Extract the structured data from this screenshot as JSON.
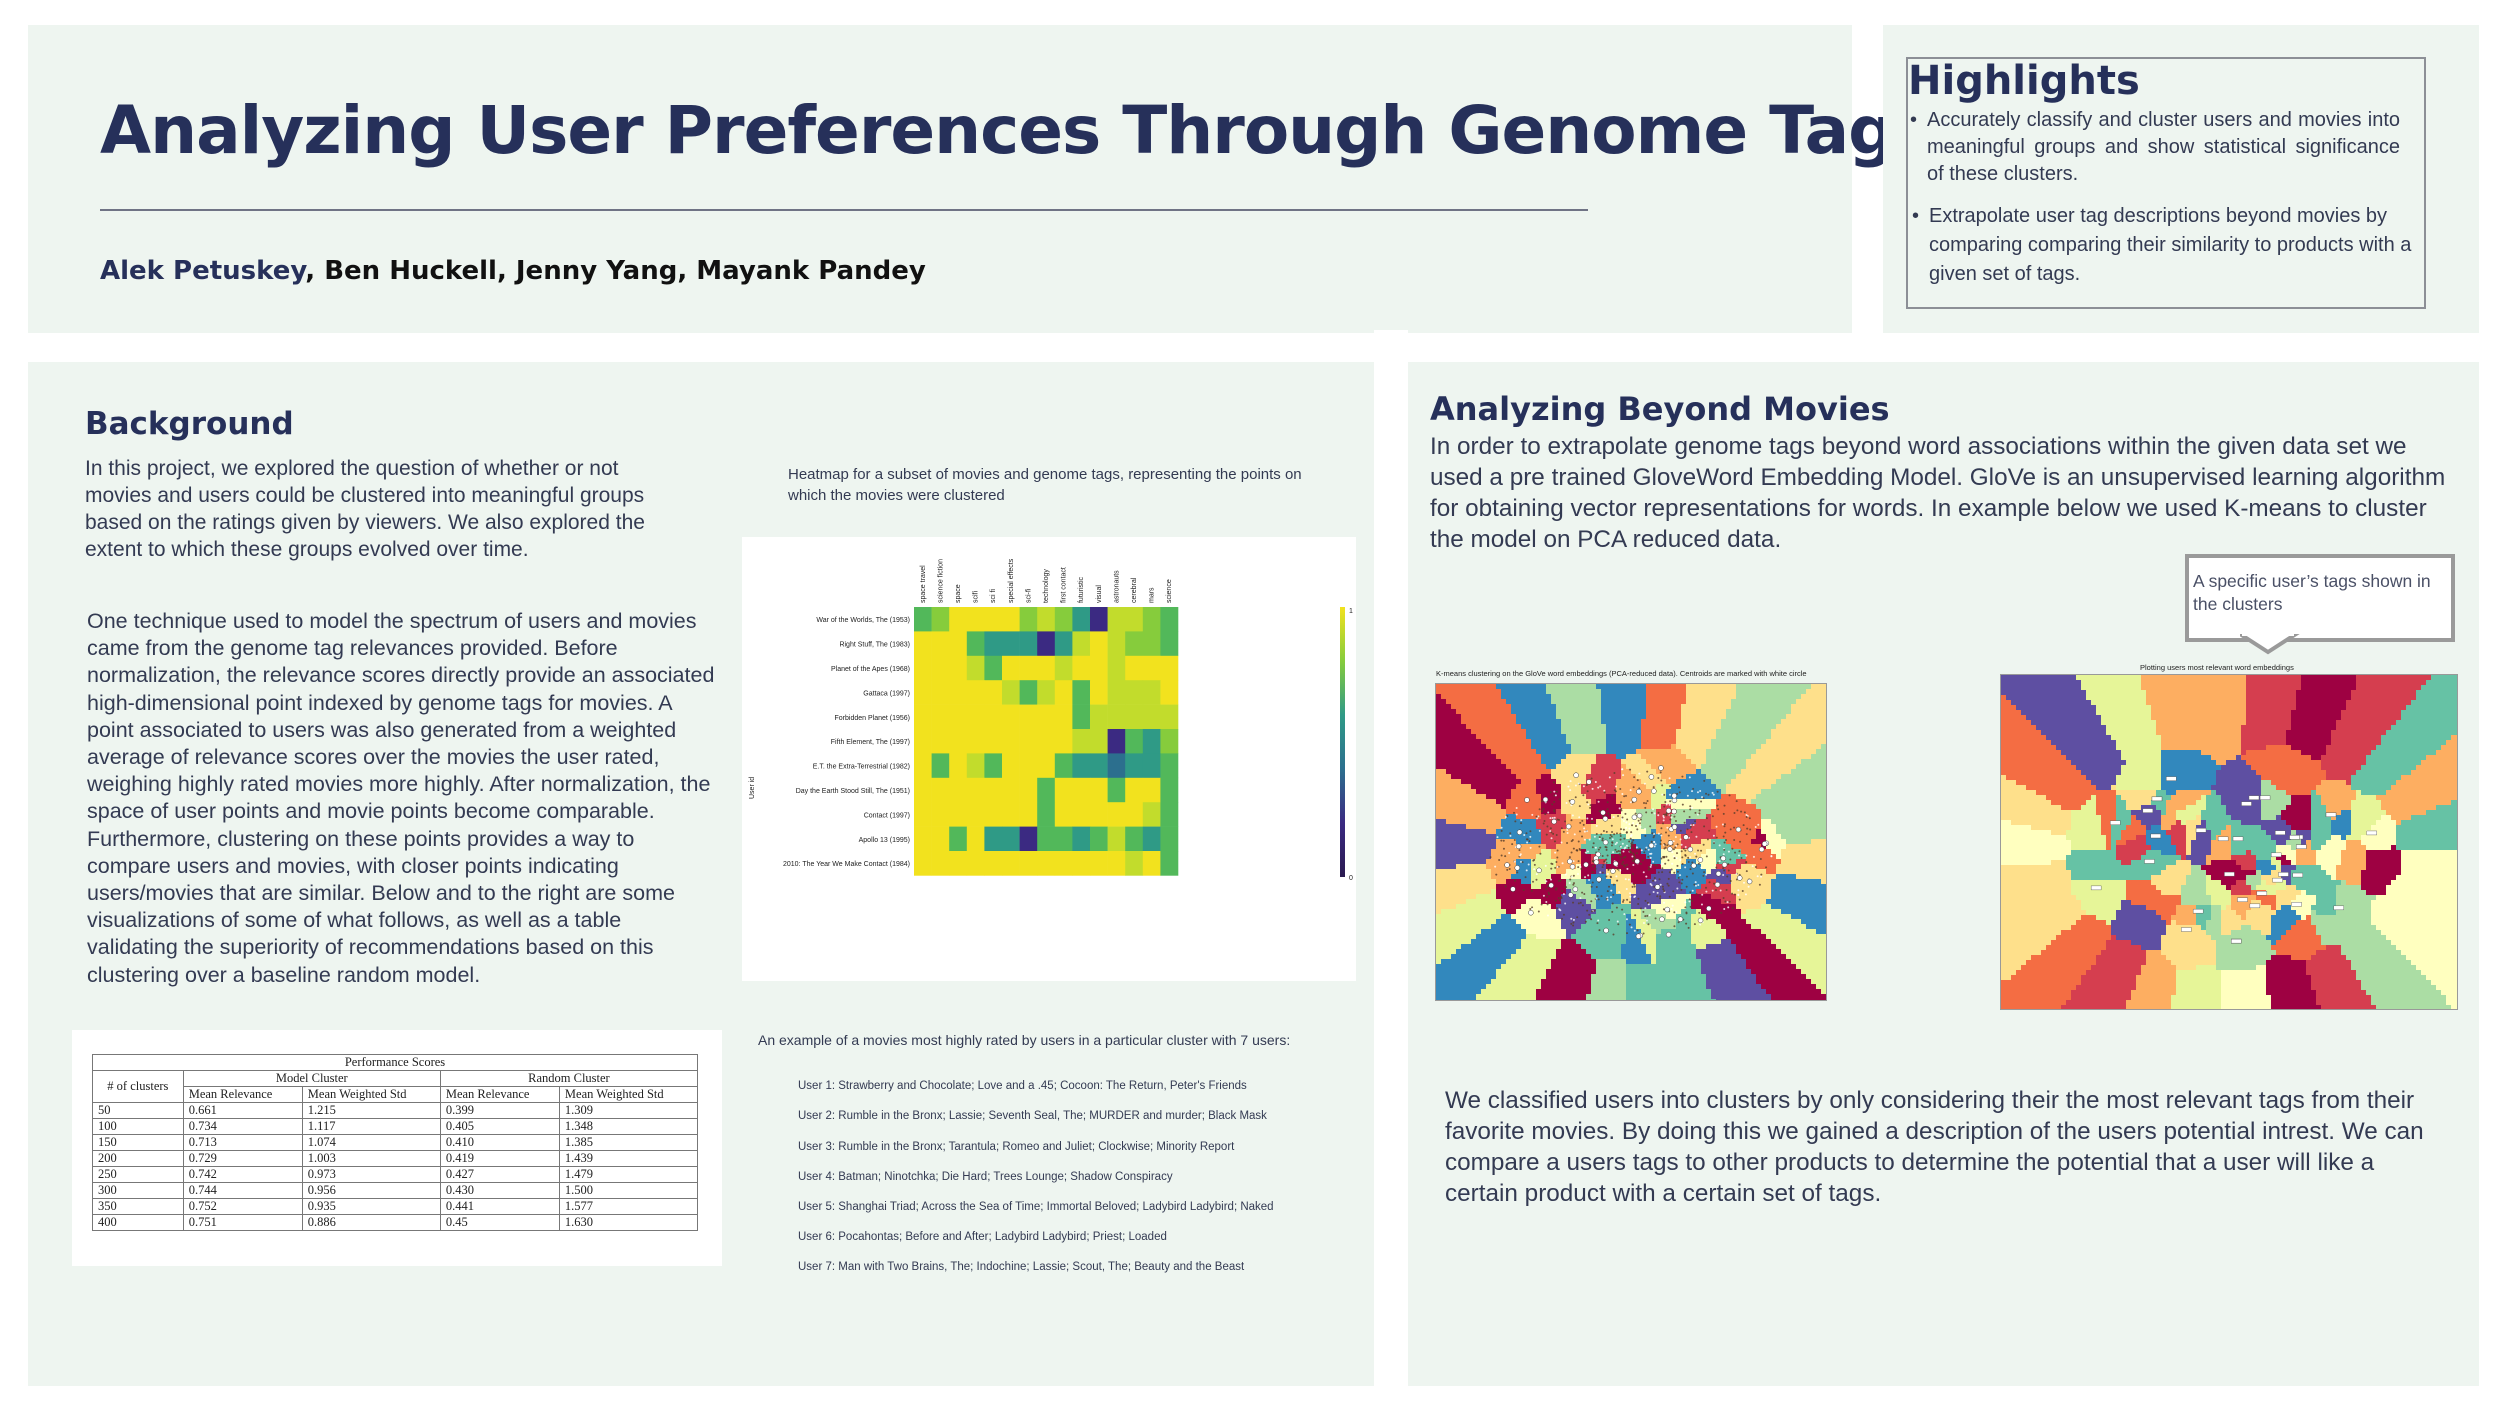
{
  "header": {
    "title": "Analyzing User Preferences Through Genome Tags",
    "author_lead": "Alek Petuskey",
    "authors_rest": ", Ben Huckell, Jenny Yang, Mayank Pandey"
  },
  "highlights": {
    "title": "Highlights",
    "items": [
      "Accurately classify and cluster users and movies into meaningful groups and show statistical significance of these clusters.",
      "Extrapolate user tag descriptions beyond movies by comparing comparing their similarity to products with a given set of tags."
    ]
  },
  "background": {
    "heading": "Background",
    "para1": "In this project, we explored the question of whether or not movies and users could be clustered into meaningful groups based on the ratings given by viewers. We also explored the extent to which these groups evolved over time.",
    "para2": "One technique used to model the spectrum of users and movies came from the genome tag relevances provided. Before normalization, the relevance scores directly provide an associated high-dimensional point indexed by genome tags for movies. A point associated to users was also generated from a weighted average of relevance scores over the movies the user rated, weighing highly rated movies more highly. After normalization, the space of user points and movie points become comparable. Furthermore, clustering on these points provides a way to compare users and movies,  with closer points indicating users/movies that are similar. Below and to the right are some visualizations of some of what follows, as well as a table validating the superiority of recommendations based on this clustering over a baseline random model."
  },
  "heatmap": {
    "caption": "Heatmap for a subset of movies and genome tags, representing the points on which the movies were clustered",
    "tags": [
      "space travel",
      "science fiction",
      "space",
      "scifi",
      "sci fi",
      "special effects",
      "sci-fi",
      "technology",
      "first contact",
      "futuristic",
      "visual",
      "astronauts",
      "cerebral",
      "mars",
      "science"
    ],
    "movies": [
      "War of the Worlds, The (1953)",
      "Right Stuff, The (1983)",
      "Planet of the Apes (1968)",
      "Gattaca (1997)",
      "Forbidden Planet (1956)",
      "Fifth Element, The (1997)",
      "E.T. the Extra-Terrestrial (1982)",
      "Day the Earth Stood Still, The (1951)",
      "Contact (1997)",
      "Apollo 13 (1995)",
      "2010: The Year We Make Contact (1984)"
    ],
    "ylabel": "User id",
    "scale_max": "1",
    "scale_min": "0",
    "colors": {
      "y": "#f2e21e",
      "l": "#c2dc2c",
      "g": "#86cc3c",
      "m": "#52b85a",
      "t": "#2f9a86",
      "d": "#2c6f8e",
      "p": "#3b2a82",
      "k": "#2a1a50"
    },
    "cells": [
      "mgyyyyglgtpllgm",
      "yyymtttptlylggm",
      "yyylmyyylyylyyy",
      "yyyyylmlymyllly",
      "yyyyyyyyymlllll",
      "yyyyyyyyyllpmtg",
      "ymylmyyymttdttm",
      "yyyyyyymyyymyym",
      "yyyyyyymyyyyylm",
      "yymyttpmmtmlmtm",
      "yyyyyyyyyyyylym"
    ]
  },
  "table": {
    "title": "Performance Scores",
    "col_first": "# of clusters",
    "group_model": "Model Cluster",
    "group_random": "Random Cluster",
    "sub_headers": [
      "Mean Relevance",
      "Mean Weighted Std",
      "Mean Relevance",
      "Mean Weighted Std"
    ],
    "rows": [
      [
        "50",
        "0.661",
        "1.215",
        "0.399",
        "1.309"
      ],
      [
        "100",
        "0.734",
        "1.117",
        "0.405",
        "1.348"
      ],
      [
        "150",
        "0.713",
        "1.074",
        "0.410",
        "1.385"
      ],
      [
        "200",
        "0.729",
        "1.003",
        "0.419",
        "1.439"
      ],
      [
        "250",
        "0.742",
        "0.973",
        "0.427",
        "1.479"
      ],
      [
        "300",
        "0.744",
        "0.956",
        "0.430",
        "1.500"
      ],
      [
        "350",
        "0.752",
        "0.935",
        "0.441",
        "1.577"
      ],
      [
        "400",
        "0.751",
        "0.886",
        "0.45",
        "1.630"
      ]
    ]
  },
  "cluster_example": {
    "caption": "An example of a movies most highly rated by users in a particular cluster with 7 users:",
    "users": [
      "User 1: Strawberry and Chocolate; Love and a .45; Cocoon: The Return, Peter's Friends",
      "User 2: Rumble in the Bronx; Lassie; Seventh Seal, The; MURDER and murder; Black Mask",
      "User 3: Rumble in the Bronx; Tarantula; Romeo and Juliet; Clockwise; Minority Report",
      "User 4: Batman; Ninotchka; Die Hard; Trees Lounge; Shadow Conspiracy",
      "User 5: Shanghai Triad; Across the Sea of Time; Immortal Beloved; Ladybird Ladybird; Naked",
      "User 6: Pocahontas; Before and After; Ladybird Ladybird; Priest; Loaded",
      "User 7: Man with Two Brains, The; Indochine; Lassie; Scout, The; Beauty and the Beast"
    ]
  },
  "beyond": {
    "heading": "Analyzing Beyond Movies",
    "para1": "In order to extrapolate genome tags beyond word associations within the given data set we used a pre trained GloveWord Embedding Model. GloVe is an unsupervised learning algorithm for obtaining vector representations for words.  In example below we used K-means to cluster the model on PCA reduced data.",
    "callout": "A specific user’s tags shown in the clusters",
    "plot1_title": "K-means clustering on the GloVe word embeddings (PCA-reduced data). Centroids are marked with white circle",
    "plot2_title": "Plotting users most relevant word embeddings",
    "para2": "We classified users into clusters by only considering their the most relevant tags from their favorite movies. By doing this we gained a description of the users potential intrest. We can compare a users tags to other products to  determine the potential that a user will like a certain product with a certain set of tags.",
    "palette": [
      "#9e0142",
      "#d53e4f",
      "#f46d43",
      "#fdae61",
      "#fee08b",
      "#ffffbf",
      "#e6f598",
      "#abdda4",
      "#66c2a5",
      "#3288bd",
      "#5e4fa2"
    ]
  }
}
